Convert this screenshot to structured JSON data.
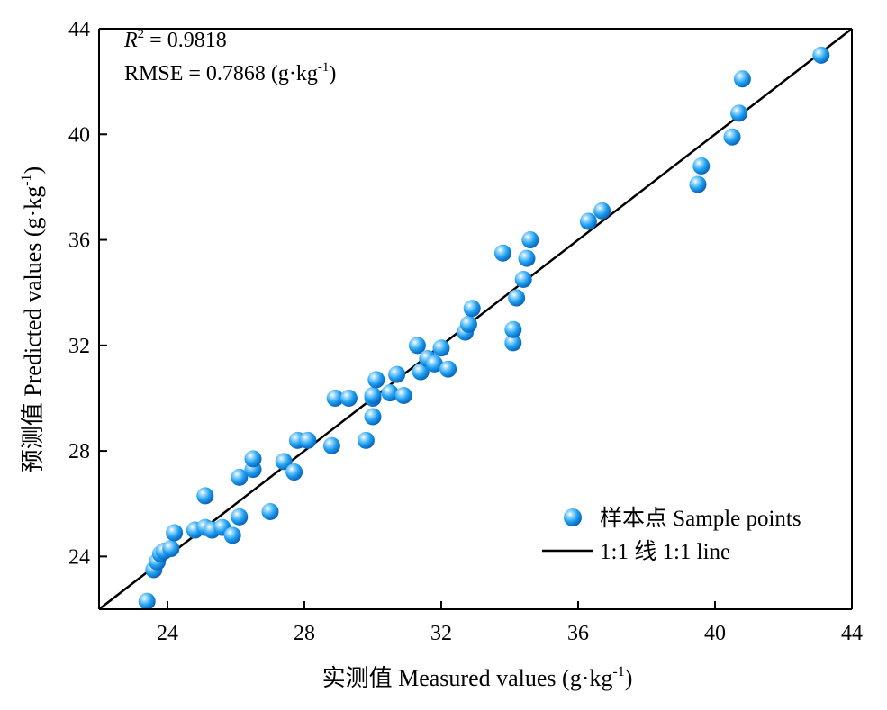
{
  "chart_data": {
    "type": "scatter",
    "title": "",
    "xlabel": "实测值 Measured values (g·kg",
    "xlabel_sup": "-1",
    "xlabel_end": ")",
    "ylabel": "预测值 Predicted values (g·kg",
    "ylabel_sup": "-1",
    "ylabel_end": ")",
    "xlim": [
      22,
      44
    ],
    "ylim": [
      22,
      44
    ],
    "xticks": [
      24,
      28,
      32,
      36,
      40,
      44
    ],
    "yticks": [
      24,
      28,
      32,
      36,
      40,
      44
    ],
    "grid": false,
    "legend_position": "bottom-right",
    "annotations": {
      "r2_label": "R",
      "r2_sup": "2",
      "r2_value": " = 0.9818",
      "rmse_text": "RMSE = 0.7868 (g·kg",
      "rmse_sup": "-1",
      "rmse_end": ")"
    },
    "series": [
      {
        "name": "样本点 Sample points",
        "kind": "points",
        "color": "#1ea0f0",
        "x": [
          23.4,
          23.6,
          23.7,
          23.8,
          23.9,
          24.1,
          24.2,
          24.8,
          25.1,
          25.1,
          25.3,
          25.6,
          25.9,
          26.1,
          26.1,
          26.5,
          26.5,
          27.0,
          27.4,
          27.7,
          27.8,
          28.1,
          28.8,
          28.9,
          29.3,
          29.8,
          30.0,
          30.0,
          30.0,
          30.1,
          30.5,
          30.7,
          30.9,
          31.3,
          31.4,
          31.6,
          31.8,
          32.0,
          32.2,
          32.7,
          32.8,
          32.9,
          34.1,
          34.1,
          34.2,
          34.4,
          34.5,
          34.6,
          33.8,
          36.3,
          36.7,
          39.5,
          39.6,
          40.5,
          40.7,
          40.8,
          43.1
        ],
        "y": [
          22.3,
          23.5,
          23.8,
          24.1,
          24.2,
          24.3,
          24.9,
          25.0,
          25.1,
          26.3,
          25.0,
          25.1,
          24.8,
          25.5,
          27.0,
          27.3,
          27.7,
          25.7,
          27.6,
          27.2,
          28.4,
          28.4,
          28.2,
          30.0,
          30.0,
          28.4,
          29.3,
          30.0,
          30.1,
          30.7,
          30.2,
          30.9,
          30.1,
          32.0,
          31.0,
          31.5,
          31.3,
          31.9,
          31.1,
          32.5,
          32.8,
          33.4,
          32.1,
          32.6,
          33.8,
          34.5,
          35.3,
          36.0,
          35.5,
          36.7,
          37.1,
          38.1,
          38.8,
          39.9,
          40.8,
          42.1,
          43.0
        ]
      },
      {
        "name": "1:1 线 1:1 line",
        "kind": "line",
        "color": "#000000",
        "x": [
          22,
          44
        ],
        "y": [
          22,
          44
        ]
      }
    ]
  }
}
